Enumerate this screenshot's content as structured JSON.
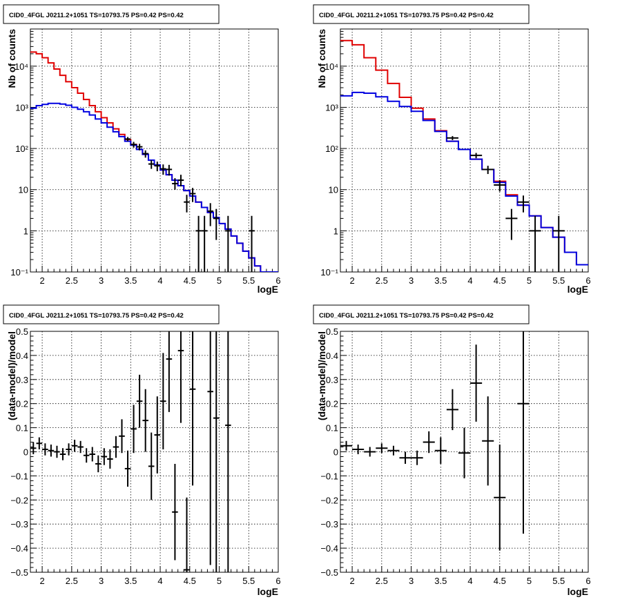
{
  "chart_data": [
    {
      "type": "line",
      "title": "CID0_4FGL J0211.2+1051 TS=10793.75 PS=0.42 PS=0.42",
      "xlabel": "logE",
      "ylabel": "Nb of counts",
      "yscale": "log",
      "grid": true,
      "xlim": [
        1.8,
        6.0
      ],
      "ylim": [
        0.1,
        80000
      ],
      "xticks": [
        "2",
        "2.5",
        "3",
        "3.5",
        "4",
        "4.5",
        "5",
        "5.5",
        "6"
      ],
      "yticks": [
        "10⁻¹",
        "1",
        "10",
        "10²",
        "10³",
        "10⁴"
      ],
      "bin_edges": [
        1.8,
        1.9,
        2.0,
        2.1,
        2.2,
        2.3,
        2.4,
        2.5,
        2.6,
        2.7,
        2.8,
        2.9,
        3.0,
        3.1,
        3.2,
        3.3,
        3.4,
        3.5,
        3.6,
        3.7,
        3.8,
        3.9,
        4.0,
        4.1,
        4.2,
        4.3,
        4.4,
        4.5,
        4.6,
        4.7,
        4.8,
        4.9,
        5.0,
        5.1,
        5.2,
        5.3,
        5.4,
        5.5,
        5.6,
        5.7,
        5.8,
        5.9,
        6.0
      ],
      "series": [
        {
          "color": "#e00000",
          "values": [
            22000,
            20000,
            16000,
            12000,
            8500,
            6000,
            4200,
            3000,
            2200,
            1550,
            1100,
            780,
            560,
            420,
            300,
            220,
            165,
            125,
            95,
            72,
            52,
            40,
            30,
            23,
            17,
            12.5,
            9.5,
            7,
            5,
            3.7,
            2.8,
            2.1,
            1.5,
            1.1,
            0.75,
            0.5,
            0.32,
            0.22,
            0.14,
            0.1,
            0.08,
            0.06
          ]
        },
        {
          "color": "#0000e0",
          "values": [
            950,
            1100,
            1180,
            1250,
            1250,
            1200,
            1120,
            1000,
            900,
            780,
            650,
            520,
            420,
            330,
            255,
            195,
            150,
            120,
            95,
            72,
            52,
            40,
            30,
            23,
            17,
            12.5,
            9.5,
            7,
            5,
            3.7,
            2.8,
            2.1,
            1.5,
            1.1,
            0.75,
            0.5,
            0.32,
            0.22,
            0.14,
            0.1,
            0.08,
            0.06
          ]
        }
      ],
      "data_points": [
        {
          "x": 3.45,
          "y": 170,
          "ylo": 150,
          "yhi": 190
        },
        {
          "x": 3.55,
          "y": 125,
          "ylo": 105,
          "yhi": 145
        },
        {
          "x": 3.65,
          "y": 110,
          "ylo": 90,
          "yhi": 130
        },
        {
          "x": 3.75,
          "y": 75,
          "ylo": 60,
          "yhi": 90
        },
        {
          "x": 3.85,
          "y": 42,
          "ylo": 32,
          "yhi": 52
        },
        {
          "x": 3.95,
          "y": 38,
          "ylo": 28,
          "yhi": 48
        },
        {
          "x": 4.05,
          "y": 32,
          "ylo": 23,
          "yhi": 41
        },
        {
          "x": 4.15,
          "y": 31,
          "ylo": 22,
          "yhi": 40
        },
        {
          "x": 4.25,
          "y": 14,
          "ylo": 10,
          "yhi": 19
        },
        {
          "x": 4.35,
          "y": 17,
          "ylo": 12,
          "yhi": 23
        },
        {
          "x": 4.45,
          "y": 5,
          "ylo": 2.8,
          "yhi": 7.5
        },
        {
          "x": 4.55,
          "y": 8,
          "ylo": 5,
          "yhi": 11
        },
        {
          "x": 4.65,
          "y": 1,
          "ylo": 0.1,
          "yhi": 2.3
        },
        {
          "x": 4.75,
          "y": 1,
          "ylo": 0.1,
          "yhi": 2.3
        },
        {
          "x": 4.85,
          "y": 3,
          "ylo": 1.3,
          "yhi": 4.7
        },
        {
          "x": 4.95,
          "y": 2,
          "ylo": 0.6,
          "yhi": 3.4
        },
        {
          "x": 5.15,
          "y": 1,
          "ylo": 0.1,
          "yhi": 2.3
        },
        {
          "x": 5.55,
          "y": 1,
          "ylo": 0.1,
          "yhi": 2.3
        }
      ]
    },
    {
      "type": "line",
      "title": "CID0_4FGL J0211.2+1051 TS=10793.75 PS=0.42 PS=0.42",
      "xlabel": "logE",
      "ylabel": "Nb of counts",
      "yscale": "log",
      "grid": true,
      "xlim": [
        1.8,
        6.0
      ],
      "ylim": [
        0.1,
        80000
      ],
      "xticks": [
        "2",
        "2.5",
        "3",
        "3.5",
        "4",
        "4.5",
        "5",
        "5.5",
        "6"
      ],
      "yticks": [
        "10⁻¹",
        "1",
        "10",
        "10²",
        "10³",
        "10⁴"
      ],
      "bin_edges": [
        1.8,
        2.0,
        2.2,
        2.4,
        2.6,
        2.8,
        3.0,
        3.2,
        3.4,
        3.6,
        3.8,
        4.0,
        4.2,
        4.4,
        4.6,
        4.8,
        5.0,
        5.2,
        5.4,
        5.6,
        5.8,
        6.0
      ],
      "series": [
        {
          "color": "#e00000",
          "values": [
            42000,
            33000,
            16000,
            8000,
            3800,
            1750,
            950,
            520,
            270,
            150,
            95,
            55,
            31,
            16,
            7.5,
            4.2,
            2.3,
            1.2,
            0.7,
            0.3,
            0.15
          ]
        },
        {
          "color": "#0000e0",
          "values": [
            1900,
            2300,
            2200,
            1800,
            1400,
            1050,
            800,
            480,
            260,
            150,
            95,
            55,
            31,
            15,
            7,
            4.2,
            2.3,
            1.2,
            0.7,
            0.3,
            0.15
          ]
        }
      ],
      "data_points": [
        {
          "x": 3.7,
          "y": 180,
          "ylo": 160,
          "yhi": 200
        },
        {
          "x": 4.1,
          "y": 68,
          "ylo": 58,
          "yhi": 78
        },
        {
          "x": 4.3,
          "y": 31,
          "ylo": 24,
          "yhi": 38
        },
        {
          "x": 4.5,
          "y": 13,
          "ylo": 9,
          "yhi": 17
        },
        {
          "x": 4.7,
          "y": 2,
          "ylo": 0.6,
          "yhi": 3.4
        },
        {
          "x": 4.9,
          "y": 5,
          "ylo": 2.8,
          "yhi": 7.2
        },
        {
          "x": 5.1,
          "y": 1,
          "ylo": 0.1,
          "yhi": 2.3
        },
        {
          "x": 5.5,
          "y": 1,
          "ylo": 0.1,
          "yhi": 2.3
        }
      ]
    },
    {
      "type": "scatter",
      "title": "CID0_4FGL J0211.2+1051 TS=10793.75 PS=0.42 PS=0.42",
      "xlabel": "logE",
      "ylabel": "(data-model)/model",
      "grid": true,
      "xlim": [
        1.8,
        6.0
      ],
      "ylim": [
        -0.5,
        0.5
      ],
      "xticks": [
        "2",
        "2.5",
        "3",
        "3.5",
        "4",
        "4.5",
        "5",
        "5.5",
        "6"
      ],
      "yticks": [
        "−0.5",
        "−0.4",
        "−0.3",
        "−0.2",
        "−0.1",
        "0",
        "0.1",
        "0.2",
        "0.3",
        "0.4",
        "0.5"
      ],
      "xerr": 0.05,
      "data_points": [
        {
          "x": 1.85,
          "y": 0.015,
          "yerr": 0.025
        },
        {
          "x": 1.95,
          "y": 0.035,
          "yerr": 0.025
        },
        {
          "x": 2.05,
          "y": 0.01,
          "yerr": 0.025
        },
        {
          "x": 2.15,
          "y": 0.005,
          "yerr": 0.025
        },
        {
          "x": 2.25,
          "y": 0.0,
          "yerr": 0.025
        },
        {
          "x": 2.35,
          "y": -0.01,
          "yerr": 0.025
        },
        {
          "x": 2.45,
          "y": 0.01,
          "yerr": 0.025
        },
        {
          "x": 2.55,
          "y": 0.025,
          "yerr": 0.025
        },
        {
          "x": 2.65,
          "y": 0.02,
          "yerr": 0.025
        },
        {
          "x": 2.75,
          "y": -0.015,
          "yerr": 0.03
        },
        {
          "x": 2.85,
          "y": -0.01,
          "yerr": 0.03
        },
        {
          "x": 2.95,
          "y": -0.05,
          "yerr": 0.035
        },
        {
          "x": 3.05,
          "y": -0.02,
          "yerr": 0.035
        },
        {
          "x": 3.15,
          "y": -0.03,
          "yerr": 0.04
        },
        {
          "x": 3.25,
          "y": 0.02,
          "yerr": 0.045
        },
        {
          "x": 3.35,
          "y": 0.065,
          "yerr": 0.07
        },
        {
          "x": 3.45,
          "y": -0.07,
          "yerr": 0.075
        },
        {
          "x": 3.55,
          "y": 0.095,
          "yerr": 0.1
        },
        {
          "x": 3.65,
          "y": 0.21,
          "yerr": 0.11
        },
        {
          "x": 3.75,
          "y": 0.13,
          "yerr": 0.13
        },
        {
          "x": 3.85,
          "y": -0.06,
          "yerr": 0.14
        },
        {
          "x": 3.95,
          "y": 0.07,
          "yerr": 0.16
        },
        {
          "x": 4.05,
          "y": 0.21,
          "yerr": 0.2
        },
        {
          "x": 4.15,
          "y": 0.385,
          "yerr": 0.22
        },
        {
          "x": 4.25,
          "y": -0.25,
          "yerr": 0.2
        },
        {
          "x": 4.35,
          "y": 0.42,
          "yerr": 0.3
        },
        {
          "x": 4.45,
          "y": -0.49,
          "yerr": 0.3
        },
        {
          "x": 4.55,
          "y": 0.26,
          "yerr": 0.4
        },
        {
          "x": 4.85,
          "y": 0.25,
          "yerr": 0.72
        },
        {
          "x": 4.95,
          "y": 0.14,
          "yerr": 0.8
        },
        {
          "x": 5.15,
          "y": 0.11,
          "yerr": 1.0
        }
      ]
    },
    {
      "type": "scatter",
      "title": "CID0_4FGL J0211.2+1051 TS=10793.75 PS=0.42 PS=0.42",
      "xlabel": "logE",
      "ylabel": "(data-model)/model",
      "grid": true,
      "xlim": [
        1.8,
        6.0
      ],
      "ylim": [
        -0.5,
        0.5
      ],
      "xticks": [
        "2",
        "2.5",
        "3",
        "3.5",
        "4",
        "4.5",
        "5",
        "5.5",
        "6"
      ],
      "yticks": [
        "−0.5",
        "−0.4",
        "−0.3",
        "−0.2",
        "−0.1",
        "0",
        "0.1",
        "0.2",
        "0.3",
        "0.4",
        "0.5"
      ],
      "xerr": 0.1,
      "data_points": [
        {
          "x": 1.9,
          "y": 0.025,
          "yerr": 0.02
        },
        {
          "x": 2.1,
          "y": 0.01,
          "yerr": 0.02
        },
        {
          "x": 2.3,
          "y": 0.0,
          "yerr": 0.02
        },
        {
          "x": 2.5,
          "y": 0.015,
          "yerr": 0.02
        },
        {
          "x": 2.7,
          "y": 0.005,
          "yerr": 0.02
        },
        {
          "x": 2.9,
          "y": -0.025,
          "yerr": 0.025
        },
        {
          "x": 3.1,
          "y": -0.025,
          "yerr": 0.03
        },
        {
          "x": 3.3,
          "y": 0.04,
          "yerr": 0.045
        },
        {
          "x": 3.5,
          "y": 0.005,
          "yerr": 0.055
        },
        {
          "x": 3.7,
          "y": 0.175,
          "yerr": 0.085
        },
        {
          "x": 3.9,
          "y": -0.005,
          "yerr": 0.105
        },
        {
          "x": 4.1,
          "y": 0.285,
          "yerr": 0.16
        },
        {
          "x": 4.3,
          "y": 0.045,
          "yerr": 0.185
        },
        {
          "x": 4.5,
          "y": -0.19,
          "yerr": 0.22
        },
        {
          "x": 4.9,
          "y": 0.2,
          "yerr": 0.54
        }
      ]
    }
  ]
}
